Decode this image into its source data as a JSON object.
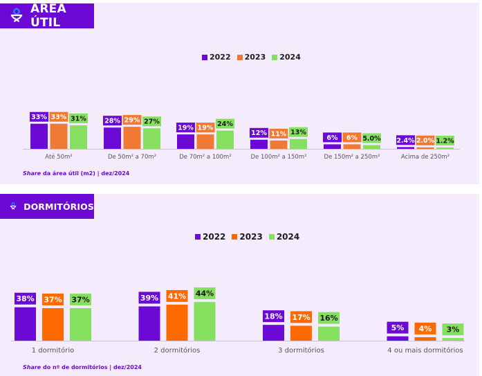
{
  "colors": {
    "panel_bg": "#f4ecfd",
    "badge_bg": "#6a0ad4",
    "badge_icon_ring": "#2f7bff",
    "series_2022": "#6a0ad4",
    "series_2023_area": "#f07a34",
    "series_2023_dorm": "#ff6a00",
    "series_2024": "#86df5e",
    "label_text_light": "#ffffff",
    "label_text_dark": "#1a1a1a",
    "axis": "#c9c2d4",
    "category_text": "#555555"
  },
  "sections": [
    {
      "id": "area",
      "title": "ÁREA ÚTIL",
      "icon": "person-pin-icon",
      "legend": [
        "2022",
        "2023",
        "2024"
      ],
      "source_italic": "Share",
      "source_rest": " da área útil (m2) | dez/2024"
    },
    {
      "id": "dorm",
      "title": "DORMITÓRIOS",
      "icon": "person-pin-icon",
      "legend": [
        "2022",
        "2023",
        "2024"
      ],
      "source_italic": "Share",
      "source_rest": " do nº de dormitórios | dez/2024"
    }
  ],
  "chart_data": [
    {
      "type": "bar",
      "title": "ÁREA ÚTIL",
      "xlabel": "",
      "ylabel": "",
      "ylim": [
        0,
        33
      ],
      "grid": false,
      "legend_position": "top-center",
      "categories": [
        "Até 50m²",
        "De 50m² a 70m²",
        "De 70m² a 100m²",
        "De 100m² a 150m²",
        "De 150m² a 250m²",
        "Acima de 250m²"
      ],
      "series": [
        {
          "name": "2022",
          "values": [
            33,
            28,
            19,
            12,
            6,
            2.4
          ],
          "labels": [
            "33%",
            "28%",
            "19%",
            "12%",
            "6%",
            "2.4%"
          ]
        },
        {
          "name": "2023",
          "values": [
            33,
            29,
            19,
            11,
            6,
            2.0
          ],
          "labels": [
            "33%",
            "29%",
            "19%",
            "11%",
            "6%",
            "2.0%"
          ]
        },
        {
          "name": "2024",
          "values": [
            31,
            27,
            24,
            13,
            5.0,
            1.2
          ],
          "labels": [
            "31%",
            "27%",
            "24%",
            "13%",
            "5.0%",
            "1.2%"
          ]
        }
      ],
      "annotation": "Share da área útil (m2) | dez/2024"
    },
    {
      "type": "bar",
      "title": "DORMITÓRIOS",
      "xlabel": "",
      "ylabel": "",
      "ylim": [
        0,
        44
      ],
      "grid": false,
      "legend_position": "top-center",
      "categories": [
        "1 dormitório",
        "2 dormitórios",
        "3 dormitórios",
        "4 ou mais dormitórios"
      ],
      "series": [
        {
          "name": "2022",
          "values": [
            38,
            39,
            18,
            5
          ],
          "labels": [
            "38%",
            "39%",
            "18%",
            "5%"
          ]
        },
        {
          "name": "2023",
          "values": [
            37,
            41,
            17,
            4
          ],
          "labels": [
            "37%",
            "41%",
            "17%",
            "4%"
          ]
        },
        {
          "name": "2024",
          "values": [
            37,
            44,
            16,
            3
          ],
          "labels": [
            "37%",
            "44%",
            "16%",
            "3%"
          ]
        }
      ],
      "annotation": "Share do nº de dormitórios | dez/2024"
    }
  ]
}
